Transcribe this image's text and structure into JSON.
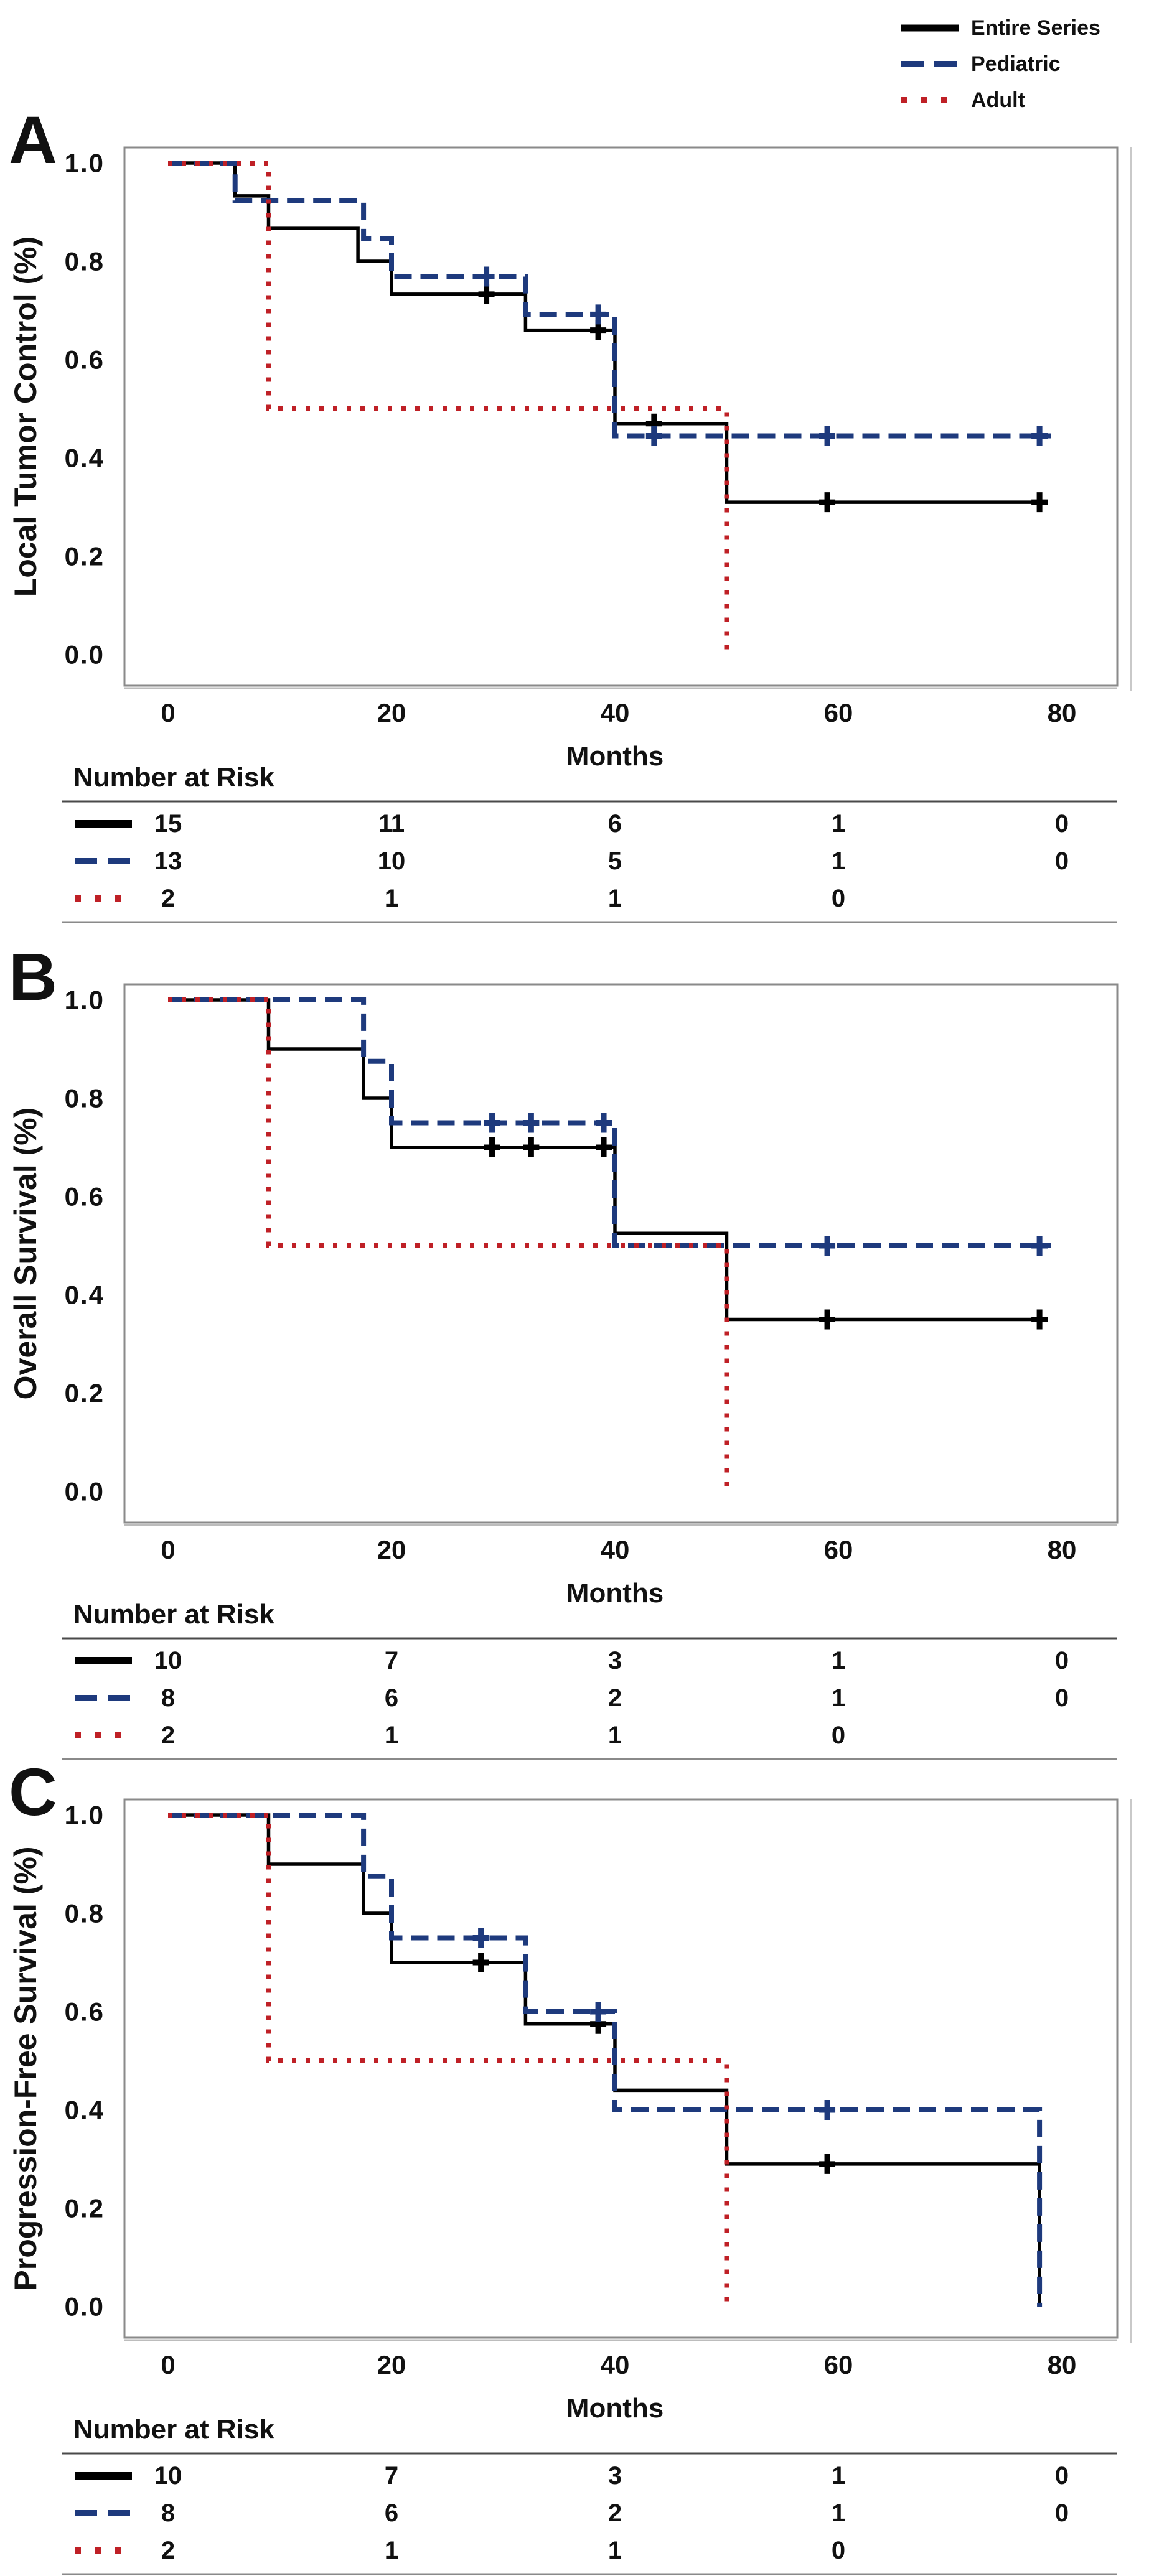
{
  "legend": {
    "items": [
      {
        "label": "Entire Series",
        "color": "#000000",
        "line_style": "solid"
      },
      {
        "label": "Pediatric",
        "color": "#1e3a7d",
        "line_style": "dashed"
      },
      {
        "label": "Adult",
        "color": "#bf2026",
        "line_style": "dotted"
      }
    ]
  },
  "axis_color": "#8a8a8a",
  "chart_data": [
    {
      "type": "line",
      "panel_letter": "A",
      "title": "",
      "ylabel": "Local Tumor Control (%)",
      "xlabel": "Months",
      "x_ticks": [
        "0",
        "20",
        "40",
        "60",
        "80"
      ],
      "y_ticks": [
        "0.0",
        "0.2",
        "0.4",
        "0.6",
        "0.8",
        "1.0"
      ],
      "xlim": [
        -4,
        85
      ],
      "ylim": [
        0,
        1.0
      ],
      "grid": false,
      "legend_position": "top-right-of-figure",
      "series": [
        {
          "name": "Entire Series",
          "color": "#000000",
          "line_style": "solid",
          "step_points": [
            [
              0,
              1.0
            ],
            [
              6,
              0.933
            ],
            [
              9,
              0.867
            ],
            [
              17,
              0.8
            ],
            [
              20,
              0.733
            ],
            [
              32,
              0.66
            ],
            [
              40,
              0.47
            ],
            [
              50,
              0.31
            ]
          ],
          "end_x": 78.5,
          "censor_marks": [
            [
              28.5,
              0.733
            ],
            [
              38.5,
              0.66
            ],
            [
              43.5,
              0.47
            ],
            [
              59,
              0.31
            ],
            [
              78,
              0.31
            ]
          ]
        },
        {
          "name": "Pediatric",
          "color": "#1e3a7d",
          "line_style": "dashed",
          "step_points": [
            [
              0,
              1.0
            ],
            [
              6,
              0.923
            ],
            [
              17.5,
              0.846
            ],
            [
              20,
              0.769
            ],
            [
              32,
              0.692
            ],
            [
              40,
              0.445
            ]
          ],
          "end_x": 79,
          "censor_marks": [
            [
              28.5,
              0.769
            ],
            [
              38.5,
              0.692
            ],
            [
              43.5,
              0.445
            ],
            [
              59,
              0.445
            ],
            [
              78,
              0.445
            ]
          ]
        },
        {
          "name": "Adult",
          "color": "#bf2026",
          "line_style": "dotted",
          "step_points": [
            [
              0,
              1.0
            ],
            [
              9,
              0.5
            ],
            [
              50,
              0.0
            ]
          ],
          "end_x": 50,
          "censor_marks": []
        }
      ],
      "number_at_risk": {
        "title": "Number at Risk",
        "columns_months": [
          0,
          20,
          40,
          60,
          80
        ],
        "rows": [
          {
            "series": "Entire Series",
            "values": [
              "15",
              "11",
              "6",
              "1",
              "0"
            ]
          },
          {
            "series": "Pediatric",
            "values": [
              "13",
              "10",
              "5",
              "1",
              "0"
            ]
          },
          {
            "series": "Adult",
            "values": [
              "2",
              "1",
              "1",
              "0",
              ""
            ]
          }
        ]
      }
    },
    {
      "type": "line",
      "panel_letter": "B",
      "title": "",
      "ylabel": "Overall Survival (%)",
      "xlabel": "Months",
      "x_ticks": [
        "0",
        "20",
        "40",
        "60",
        "80"
      ],
      "y_ticks": [
        "0.0",
        "0.2",
        "0.4",
        "0.6",
        "0.8",
        "1.0"
      ],
      "xlim": [
        -4,
        85
      ],
      "ylim": [
        0,
        1.0
      ],
      "grid": false,
      "legend_position": "top-right-of-figure",
      "series": [
        {
          "name": "Entire Series",
          "color": "#000000",
          "line_style": "solid",
          "step_points": [
            [
              0,
              1.0
            ],
            [
              9,
              0.9
            ],
            [
              17.5,
              0.8
            ],
            [
              20,
              0.7
            ],
            [
              40,
              0.525
            ],
            [
              50,
              0.35
            ]
          ],
          "end_x": 78.5,
          "censor_marks": [
            [
              29,
              0.7
            ],
            [
              32.5,
              0.7
            ],
            [
              39,
              0.7
            ],
            [
              59,
              0.35
            ],
            [
              78,
              0.35
            ]
          ]
        },
        {
          "name": "Pediatric",
          "color": "#1e3a7d",
          "line_style": "dashed",
          "step_points": [
            [
              0,
              1.0
            ],
            [
              17.5,
              0.875
            ],
            [
              20,
              0.75
            ],
            [
              40,
              0.5
            ]
          ],
          "end_x": 79,
          "censor_marks": [
            [
              29,
              0.75
            ],
            [
              32.5,
              0.75
            ],
            [
              39,
              0.75
            ],
            [
              59,
              0.5
            ],
            [
              78,
              0.5
            ]
          ]
        },
        {
          "name": "Adult",
          "color": "#bf2026",
          "line_style": "dotted",
          "step_points": [
            [
              0,
              1.0
            ],
            [
              9,
              0.5
            ],
            [
              50,
              0.0
            ]
          ],
          "end_x": 50,
          "censor_marks": []
        }
      ],
      "number_at_risk": {
        "title": "Number at Risk",
        "columns_months": [
          0,
          20,
          40,
          60,
          80
        ],
        "rows": [
          {
            "series": "Entire Series",
            "values": [
              "10",
              "7",
              "3",
              "1",
              "0"
            ]
          },
          {
            "series": "Pediatric",
            "values": [
              "8",
              "6",
              "2",
              "1",
              "0"
            ]
          },
          {
            "series": "Adult",
            "values": [
              "2",
              "1",
              "1",
              "0",
              ""
            ]
          }
        ]
      }
    },
    {
      "type": "line",
      "panel_letter": "C",
      "title": "",
      "ylabel": "Progression-Free Survival (%)",
      "xlabel": "Months",
      "x_ticks": [
        "0",
        "20",
        "40",
        "60",
        "80"
      ],
      "y_ticks": [
        "0.0",
        "0.2",
        "0.4",
        "0.6",
        "0.8",
        "1.0"
      ],
      "xlim": [
        -4,
        85
      ],
      "ylim": [
        0,
        1.0
      ],
      "grid": false,
      "legend_position": "top-right-of-figure",
      "series": [
        {
          "name": "Entire Series",
          "color": "#000000",
          "line_style": "solid",
          "step_points": [
            [
              0,
              1.0
            ],
            [
              9,
              0.9
            ],
            [
              17.5,
              0.8
            ],
            [
              20,
              0.7
            ],
            [
              32,
              0.575
            ],
            [
              40,
              0.44
            ],
            [
              50,
              0.29
            ],
            [
              78,
              0.0
            ]
          ],
          "end_x": 78,
          "censor_marks": [
            [
              28,
              0.7
            ],
            [
              38.5,
              0.575
            ],
            [
              59,
              0.29
            ]
          ]
        },
        {
          "name": "Pediatric",
          "color": "#1e3a7d",
          "line_style": "dashed",
          "step_points": [
            [
              0,
              1.0
            ],
            [
              17.5,
              0.875
            ],
            [
              20,
              0.75
            ],
            [
              32,
              0.6
            ],
            [
              40,
              0.4
            ],
            [
              78,
              0.0
            ]
          ],
          "end_x": 78,
          "censor_marks": [
            [
              28,
              0.75
            ],
            [
              38.5,
              0.6
            ],
            [
              59,
              0.4
            ]
          ]
        },
        {
          "name": "Adult",
          "color": "#bf2026",
          "line_style": "dotted",
          "step_points": [
            [
              0,
              1.0
            ],
            [
              9,
              0.5
            ],
            [
              50,
              0.0
            ]
          ],
          "end_x": 50,
          "censor_marks": []
        }
      ],
      "number_at_risk": {
        "title": "Number at Risk",
        "columns_months": [
          0,
          20,
          40,
          60,
          80
        ],
        "rows": [
          {
            "series": "Entire Series",
            "values": [
              "10",
              "7",
              "3",
              "1",
              "0"
            ]
          },
          {
            "series": "Pediatric",
            "values": [
              "8",
              "6",
              "2",
              "1",
              "0"
            ]
          },
          {
            "series": "Adult",
            "values": [
              "2",
              "1",
              "1",
              "0",
              ""
            ]
          }
        ]
      }
    }
  ]
}
